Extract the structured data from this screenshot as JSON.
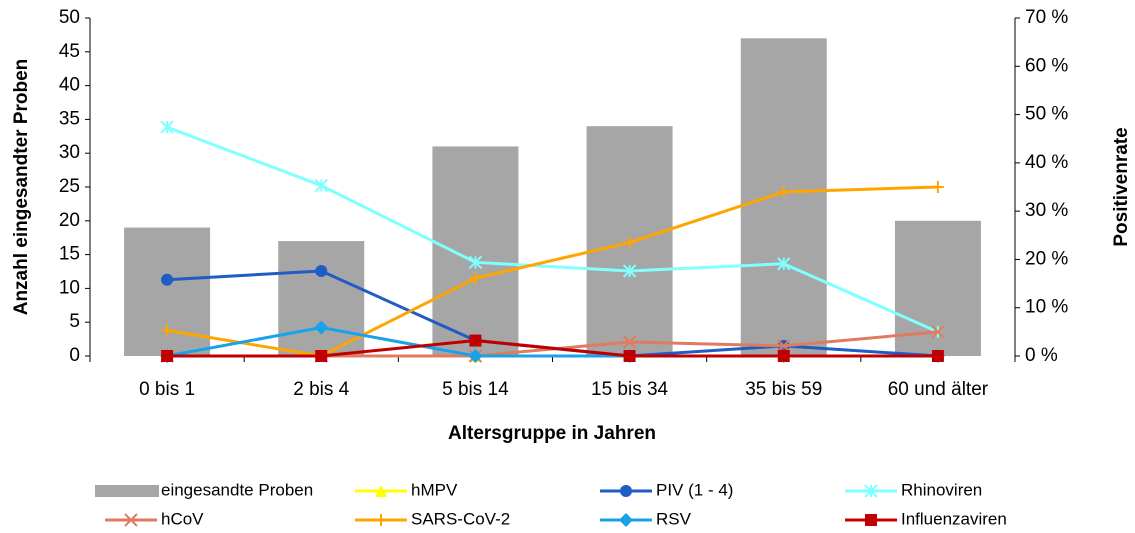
{
  "chart_data": {
    "type": "combo",
    "x_label": "Altersgruppe in Jahren",
    "y_label": "Anzahl eingesandter Proben",
    "y2_label": "Positivenrate",
    "categories": [
      "0 bis 1",
      "2 bis 4",
      "5 bis 14",
      "15 bis 34",
      "35 bis 59",
      "60 und älter"
    ],
    "ylim": [
      0,
      50
    ],
    "yticks": [
      0,
      5,
      10,
      15,
      20,
      25,
      30,
      35,
      40,
      45,
      50
    ],
    "y2lim": [
      0,
      70
    ],
    "y2ticks": [
      {
        "value": 0,
        "label": "0 %"
      },
      {
        "value": 10,
        "label": "10 %"
      },
      {
        "value": 20,
        "label": "20 %"
      },
      {
        "value": 30,
        "label": "30 %"
      },
      {
        "value": 40,
        "label": "40 %"
      },
      {
        "value": 50,
        "label": "50 %"
      },
      {
        "value": 60,
        "label": "60 %"
      },
      {
        "value": 70,
        "label": "70 %"
      }
    ],
    "series": [
      {
        "name": "eingesandte Proben",
        "type": "bar",
        "color": "#a6a6a6",
        "values": [
          19,
          17,
          31,
          34,
          47,
          20
        ]
      },
      {
        "name": "hMPV",
        "type": "line",
        "axis": "y2",
        "marker": "triangle",
        "color": "#ffff00",
        "values": [
          0,
          0,
          0,
          0,
          0,
          0
        ]
      },
      {
        "name": "PIV (1 - 4)",
        "type": "line",
        "axis": "y2",
        "marker": "circle",
        "color": "#1f5cc4",
        "values": [
          15.8,
          17.6,
          3.2,
          0,
          2.1,
          0
        ]
      },
      {
        "name": "Rhinoviren",
        "type": "line",
        "axis": "y2",
        "marker": "asterisk",
        "color": "#80ffff",
        "values": [
          47.4,
          35.3,
          19.4,
          17.6,
          19.1,
          5
        ]
      },
      {
        "name": "hCoV",
        "type": "line",
        "axis": "y2",
        "marker": "x",
        "color": "#e07b5f",
        "values": [
          0,
          0,
          0,
          2.9,
          2.1,
          5
        ]
      },
      {
        "name": "SARS-CoV-2",
        "type": "line",
        "axis": "y2",
        "marker": "plus",
        "color": "#ffa500",
        "values": [
          5.3,
          0,
          16.1,
          23.5,
          34.0,
          35
        ]
      },
      {
        "name": "RSV",
        "type": "line",
        "axis": "y2",
        "marker": "diamond",
        "color": "#18a3e8",
        "values": [
          0,
          5.9,
          0,
          0,
          0,
          0
        ]
      },
      {
        "name": "Influenzaviren",
        "type": "line",
        "axis": "y2",
        "marker": "square",
        "color": "#c00000",
        "values": [
          0,
          0,
          3.2,
          0,
          0,
          0
        ]
      }
    ]
  }
}
